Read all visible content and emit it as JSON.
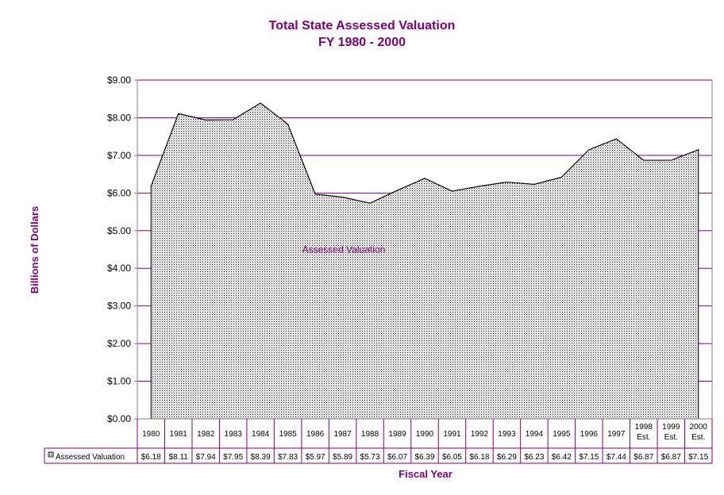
{
  "chart_data": {
    "type": "area",
    "title": "Total State Assessed Valuation",
    "subtitle": "FY 1980 - 2000",
    "xlabel": "Fiscal Year",
    "ylabel": "Billions of Dollars",
    "ylim": [
      0,
      9
    ],
    "yticks": [
      "$0.00",
      "$1.00",
      "$2.00",
      "$3.00",
      "$4.00",
      "$5.00",
      "$6.00",
      "$7.00",
      "$8.00",
      "$9.00"
    ],
    "grid": true,
    "legend_placement": "data-table",
    "categories": [
      [
        "1980"
      ],
      [
        "1981"
      ],
      [
        "1982"
      ],
      [
        "1983"
      ],
      [
        "1984"
      ],
      [
        "1985"
      ],
      [
        "1986"
      ],
      [
        "1987"
      ],
      [
        "1988"
      ],
      [
        "1989"
      ],
      [
        "1990"
      ],
      [
        "1991"
      ],
      [
        "1992"
      ],
      [
        "1993"
      ],
      [
        "1994"
      ],
      [
        "1995"
      ],
      [
        "1996"
      ],
      [
        "1997"
      ],
      [
        "1998",
        "Est."
      ],
      [
        "1999",
        "Est."
      ],
      [
        "2000",
        "Est."
      ]
    ],
    "series": [
      {
        "name": "Assessed Valuation",
        "values": [
          6.18,
          8.11,
          7.94,
          7.95,
          8.39,
          7.83,
          5.97,
          5.89,
          5.73,
          6.07,
          6.39,
          6.05,
          6.18,
          6.29,
          6.23,
          6.42,
          7.15,
          7.44,
          6.87,
          6.87,
          7.15
        ],
        "labels": [
          "$6.18",
          "$8.11",
          "$7.94",
          "$7.95",
          "$8.39",
          "$7.83",
          "$5.97",
          "$5.89",
          "$5.73",
          "$6.07",
          "$6.39",
          "$6.05",
          "$6.18",
          "$6.29",
          "$6.23",
          "$6.42",
          "$7.15",
          "$7.44",
          "$6.87",
          "$6.87",
          "$7.15"
        ]
      }
    ],
    "colors": {
      "text": "#800080",
      "grid": "#800080",
      "axis": "#808080",
      "fill_pattern": "#000000"
    }
  }
}
